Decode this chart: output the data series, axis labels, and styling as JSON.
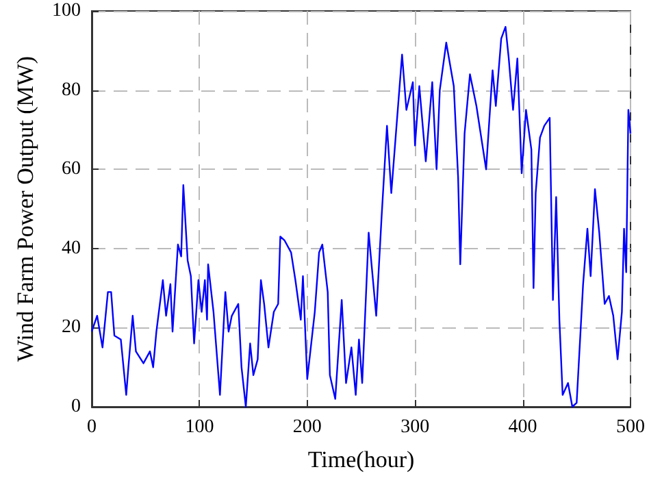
{
  "chart_data": {
    "type": "line",
    "xlabel": "Time(hour)",
    "ylabel": "Wind Farm Power Output (MW)",
    "xlim": [
      0,
      500
    ],
    "xticks": [
      0,
      100,
      200,
      300,
      400,
      500
    ],
    "ylim": [
      0,
      100
    ],
    "yticks": [
      0,
      20,
      40,
      60,
      80,
      100
    ],
    "grid": true,
    "line_style": "solid",
    "marker": "none",
    "series": [
      {
        "color": "#0000ff",
        "x": [
          0,
          5,
          10,
          15,
          18,
          21,
          27,
          32,
          34,
          38,
          41,
          48,
          54,
          57,
          60,
          66,
          69,
          73,
          75,
          80,
          83,
          85,
          89,
          92,
          95,
          99,
          102,
          105,
          107,
          108,
          113,
          119,
          124,
          127,
          130,
          136,
          139,
          143,
          147,
          150,
          154,
          157,
          160,
          164,
          169,
          173,
          175,
          179,
          185,
          189,
          194,
          196,
          200,
          207,
          211,
          214,
          219,
          221,
          226,
          232,
          236,
          241,
          245,
          248,
          251,
          257,
          264,
          269,
          274,
          278,
          282,
          288,
          292,
          298,
          300,
          304,
          310,
          316,
          320,
          323,
          329,
          336,
          340,
          342,
          346,
          351,
          357,
          366,
          372,
          375,
          380,
          384,
          387,
          391,
          395,
          399,
          403,
          408,
          410,
          412,
          416,
          420,
          425,
          428,
          431,
          434,
          437,
          442,
          446,
          450,
          456,
          460,
          463,
          467,
          471,
          476,
          480,
          484,
          488,
          492,
          494,
          496,
          498,
          500
        ],
        "values": [
          19,
          23,
          15,
          29,
          29,
          18,
          17,
          3,
          10,
          23,
          14,
          11,
          14,
          10,
          19,
          32,
          23,
          31,
          19,
          41,
          38,
          56,
          37,
          33,
          16,
          32,
          24,
          32,
          22,
          36,
          24,
          3,
          29,
          19,
          23,
          26,
          10,
          0,
          16,
          8,
          12,
          32,
          26,
          15,
          24,
          26,
          43,
          42,
          39,
          32,
          22,
          33,
          7,
          24,
          39,
          41,
          29,
          8,
          2,
          27,
          6,
          15,
          3,
          17,
          6,
          44,
          23,
          48,
          71,
          54,
          68,
          89,
          75,
          82,
          66,
          81,
          62,
          82,
          60,
          80,
          92,
          81,
          58,
          36,
          69,
          84,
          76,
          60,
          85,
          76,
          93,
          96,
          88,
          75,
          88,
          59,
          75,
          65,
          30,
          54,
          68,
          71,
          73,
          27,
          53,
          22,
          3,
          6,
          0,
          1,
          31,
          45,
          33,
          55,
          44,
          26,
          28,
          23,
          12,
          24,
          45,
          34,
          75,
          69
        ]
      }
    ]
  }
}
